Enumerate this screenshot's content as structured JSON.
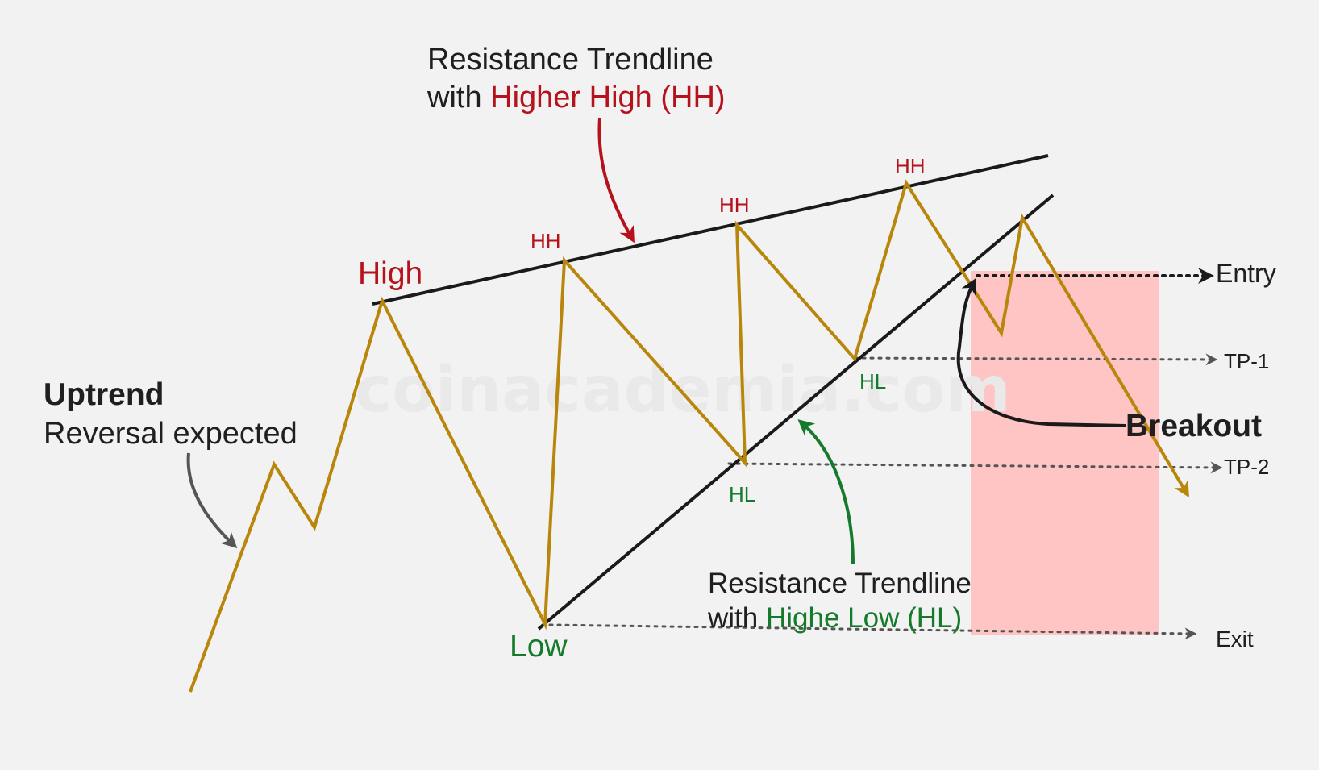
{
  "watermark": "coinacademia.com",
  "title": {
    "line1": "Resistance Trendline",
    "line2_prefix": "with ",
    "line2_highlight": "Higher High (HH)"
  },
  "support_label": {
    "line1": "Resistance Trendline",
    "line2_prefix": "with ",
    "line2_highlight": "Highe Low (HL)"
  },
  "uptrend": {
    "bold": "Uptrend",
    "sub": "Reversal expected"
  },
  "points": {
    "high": "High",
    "low": "Low",
    "hh1": "HH",
    "hh2": "HH",
    "hh3": "HH",
    "hl1": "HL",
    "hl2": "HL"
  },
  "targets": {
    "entry": "Entry",
    "tp1": "TP-1",
    "tp2": "TP-2",
    "exit": "Exit"
  },
  "breakout": "Breakout",
  "colors": {
    "background": "#f2f2f2",
    "price_line": "#b8860b",
    "trendline": "#1a1a1a",
    "higher_high": "#b5121b",
    "higher_low": "#157a2c",
    "neutral_arrow": "#555555",
    "breakout_zone": "#ffc4c4"
  },
  "icons": {
    "title_pointer": "curved-arrow-down",
    "support_pointer": "curved-arrow-up",
    "uptrend_pointer": "curved-arrow-down",
    "breakout_pointer": "curved-arrow-up",
    "target_pointer": "arrow-right"
  }
}
